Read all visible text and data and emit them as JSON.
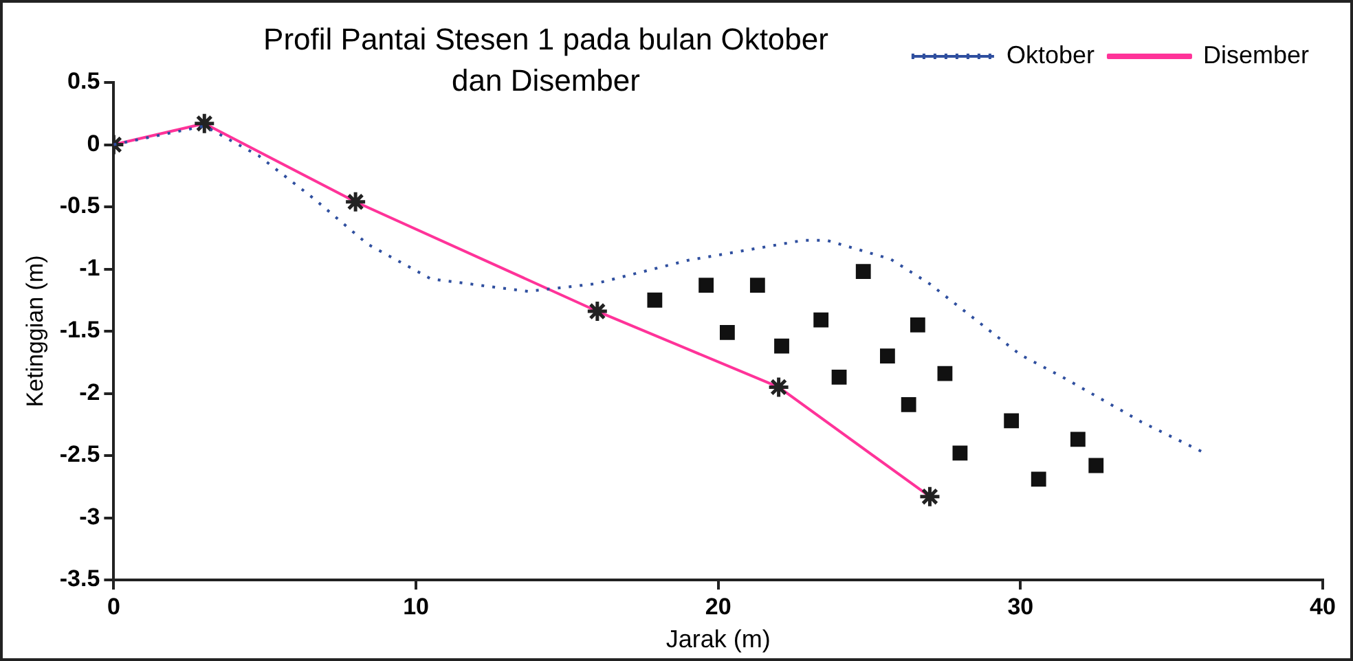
{
  "chart_data": {
    "type": "line",
    "title": "Profil Pantai Stesen 1 pada bulan Oktober dan Disember",
    "xlabel": "Jarak (m)",
    "ylabel": "Ketinggian (m)",
    "xlim": [
      0,
      40
    ],
    "xticks": [
      0,
      10,
      20,
      30,
      40
    ],
    "ylim": [
      -3.5,
      0.5
    ],
    "yticks": [
      0.5,
      0,
      -0.5,
      -1,
      -1.5,
      -2,
      -2.5,
      -3,
      -3.5
    ],
    "grid": false,
    "legend": "top right",
    "series": [
      {
        "name": "Oktober",
        "color": "#2f4f9f",
        "line_style": "dotted",
        "marker": "none",
        "x": [
          0,
          2.2,
          3,
          4.8,
          6.6,
          8.4,
          10.5,
          13.7,
          15.9,
          19,
          22.8,
          23.6,
          25.7,
          27,
          30,
          31.4,
          33.5,
          34,
          36.1
        ],
        "values": [
          0,
          0.11,
          0.15,
          -0.09,
          -0.43,
          -0.8,
          -1.08,
          -1.18,
          -1.12,
          -0.93,
          -0.77,
          -0.77,
          -0.92,
          -1.12,
          -1.69,
          -1.87,
          -2.16,
          -2.23,
          -2.48
        ]
      },
      {
        "name": "Disember",
        "color": "#ff3399",
        "line_style": "solid",
        "marker": "cross",
        "x": [
          0,
          3,
          8,
          16,
          22,
          27
        ],
        "values": [
          0,
          0.17,
          -0.46,
          -1.34,
          -1.95,
          -2.83
        ]
      },
      {
        "type": "scatter",
        "color": "#111111",
        "marker": "square",
        "x": [
          17.9,
          19.6,
          21.3,
          24.8,
          20.3,
          22.1,
          23.4,
          26.6,
          25.6,
          24,
          27.5,
          26.3,
          29.7,
          28,
          31.9,
          30.6,
          32.5
        ],
        "values": [
          -1.25,
          -1.13,
          -1.13,
          -1.02,
          -1.51,
          -1.62,
          -1.41,
          -1.45,
          -1.7,
          -1.87,
          -1.84,
          -2.09,
          -2.22,
          -2.48,
          -2.37,
          -2.69,
          -2.58
        ]
      }
    ]
  }
}
